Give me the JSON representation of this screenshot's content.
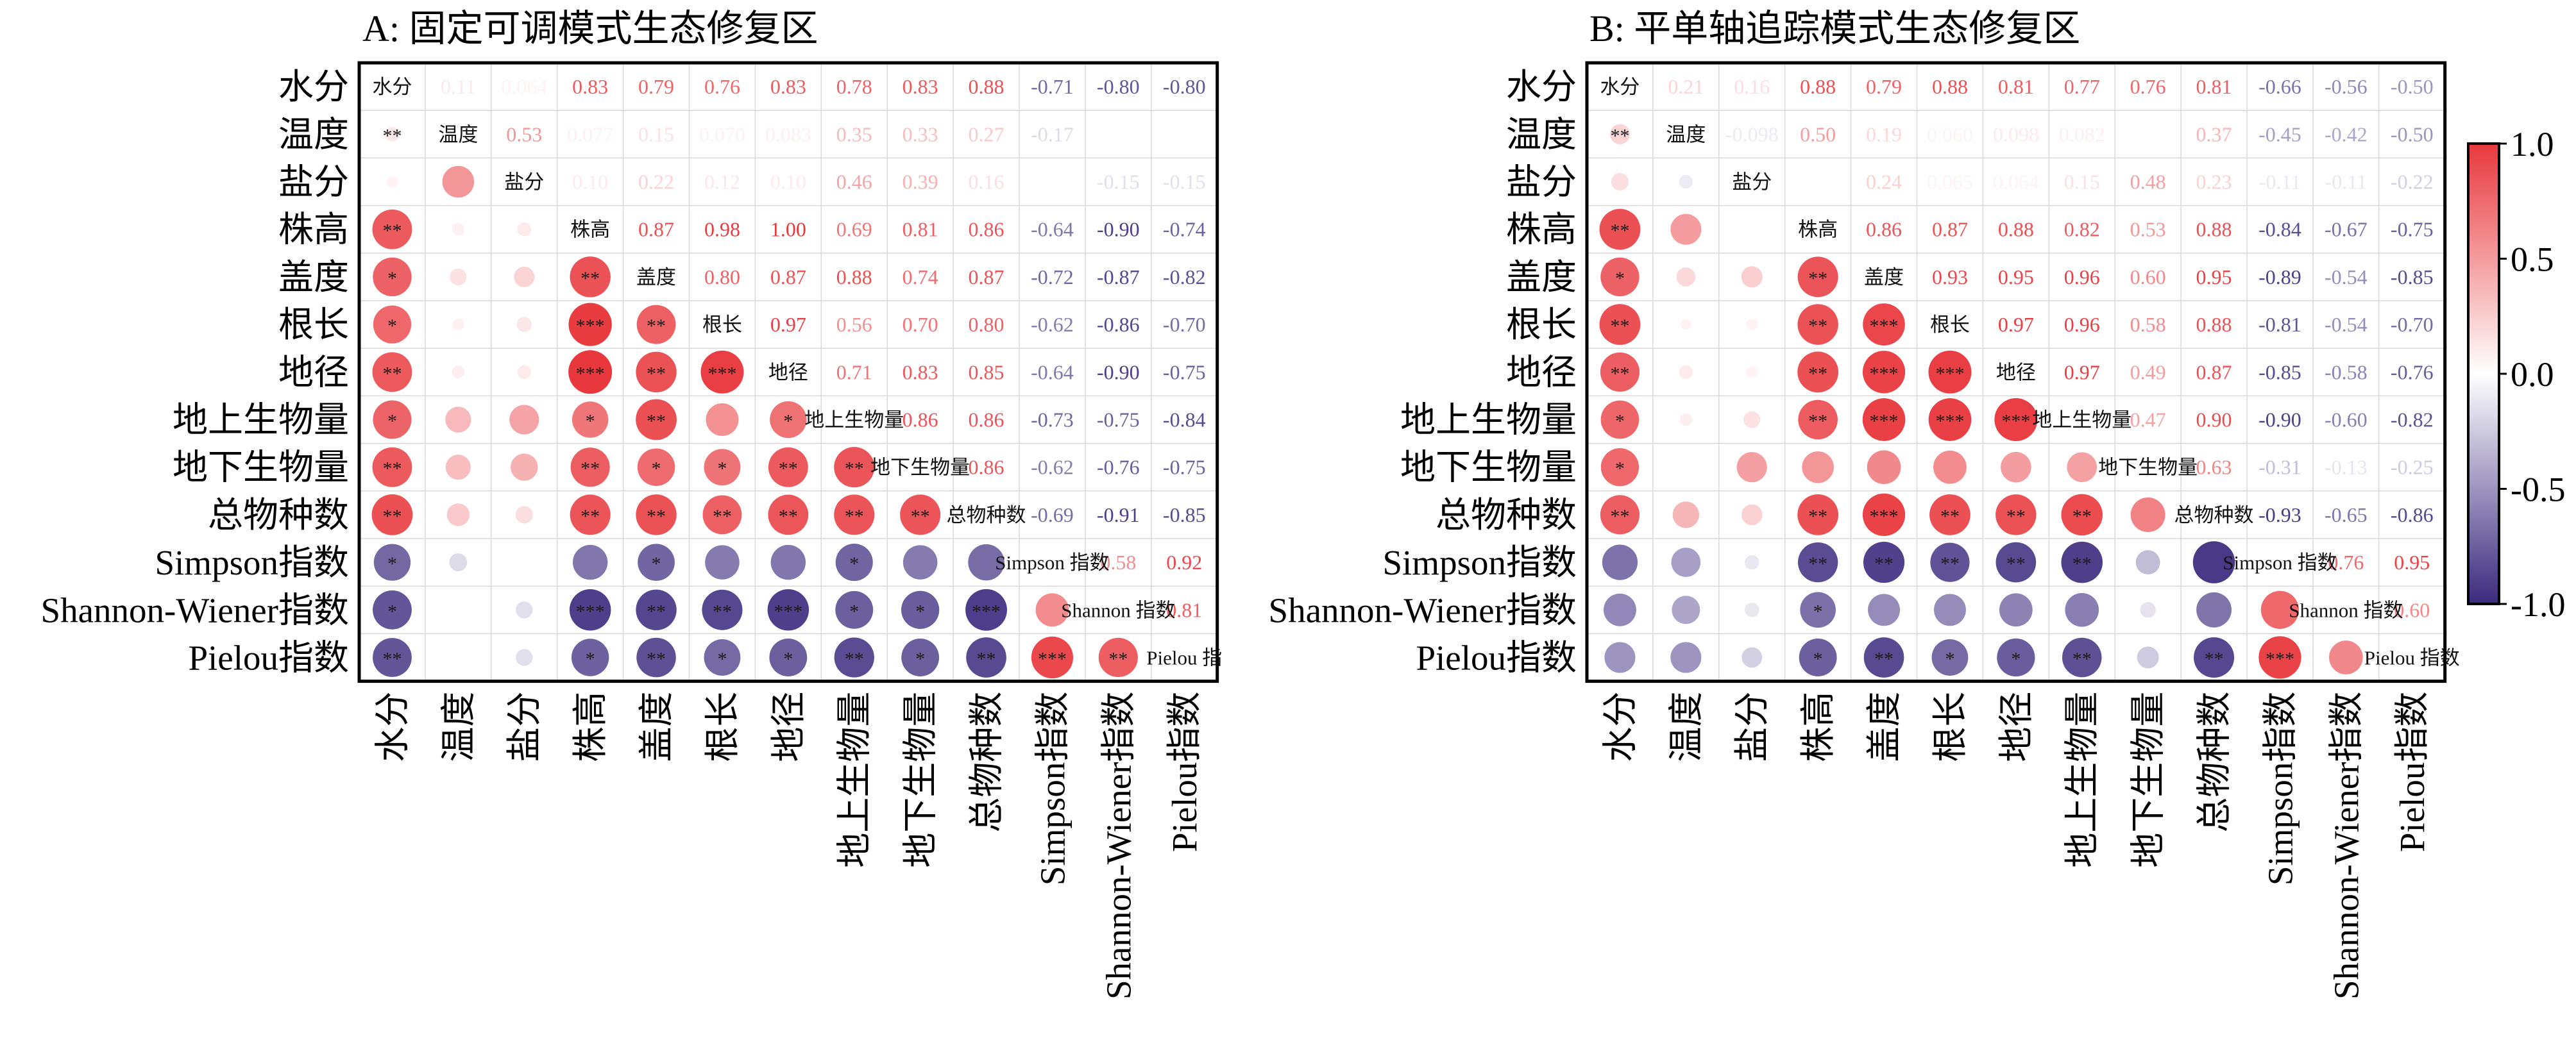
{
  "figure": {
    "colors": {
      "positive": "#e8383d",
      "negative": "#3b2a7e",
      "neutral": "#ffffff",
      "grid": "#d9d9d9"
    }
  },
  "chart_data": [
    {
      "type": "heatmap",
      "title": "A: 固定可调模式生态修复区",
      "variables": [
        "水分",
        "温度",
        "盐分",
        "株高",
        "盖度",
        "根长",
        "地径",
        "地上生物量",
        "地下生物量",
        "总物种数",
        "Simpson指数",
        "Shannon-Wiener指数",
        "Pielou指数"
      ],
      "diagonal_labels": [
        "水分",
        "温度",
        "盐分",
        "株高",
        "盖度",
        "根长",
        "地径",
        "地上生物量",
        "地下生物量",
        "总物种数",
        "Simpson 指数",
        "Shannon 指数",
        "Pielou 指"
      ],
      "upper_values": [
        [
          "0.11",
          "0.064",
          "0.83",
          "0.79",
          "0.76",
          "0.83",
          "0.78",
          "0.83",
          "0.88",
          "-0.71",
          "-0.80",
          "-0.80"
        ],
        [
          "0.53",
          "0.077",
          "0.15",
          "0.070",
          "0.083",
          "0.35",
          "0.33",
          "0.27",
          "-0.17",
          "",
          ""
        ],
        [
          "0.10",
          "0.22",
          "0.12",
          "0.10",
          "0.46",
          "0.39",
          "0.16",
          "",
          "-0.15",
          "-0.15"
        ],
        [
          "0.87",
          "0.98",
          "1.00",
          "0.69",
          "0.81",
          "0.86",
          "-0.64",
          "-0.90",
          "-0.74"
        ],
        [
          "0.80",
          "0.87",
          "0.88",
          "0.74",
          "0.87",
          "-0.72",
          "-0.87",
          "-0.82"
        ],
        [
          "0.97",
          "0.56",
          "0.70",
          "0.80",
          "-0.62",
          "-0.86",
          "-0.70"
        ],
        [
          "0.71",
          "0.83",
          "0.85",
          "-0.64",
          "-0.90",
          "-0.75"
        ],
        [
          "0.86",
          "0.86",
          "-0.73",
          "-0.75",
          "-0.84"
        ],
        [
          "0.86",
          "-0.62",
          "-0.76",
          "-0.75"
        ],
        [
          "-0.69",
          "-0.91",
          "-0.85"
        ],
        [
          "0.58",
          "0.92"
        ],
        [
          "0.81"
        ]
      ],
      "lower_stars": [
        [
          "**"
        ],
        [
          "",
          ""
        ],
        [
          "**",
          "",
          ""
        ],
        [
          "*",
          "",
          "",
          "**"
        ],
        [
          "*",
          "",
          "",
          "***",
          "**"
        ],
        [
          "**",
          "",
          "",
          "***",
          "**",
          "***"
        ],
        [
          "*",
          "",
          "",
          "*",
          "**",
          "",
          "*"
        ],
        [
          "**",
          "",
          "",
          "**",
          "*",
          "*",
          "**",
          "**"
        ],
        [
          "**",
          "",
          "",
          "**",
          "**",
          "**",
          "**",
          "**",
          "**"
        ],
        [
          "*",
          "",
          "",
          "",
          "*",
          "",
          "",
          "*",
          "",
          ""
        ],
        [
          "*",
          "",
          "",
          "***",
          "**",
          "**",
          "***",
          "*",
          "*",
          "***",
          "",
          ""
        ],
        [
          "**",
          "",
          "",
          "*",
          "**",
          "*",
          "*",
          "**",
          "*",
          "**",
          "***",
          "**"
        ]
      ]
    },
    {
      "type": "heatmap",
      "title": "B: 平单轴追踪模式生态修复区",
      "variables": [
        "水分",
        "温度",
        "盐分",
        "株高",
        "盖度",
        "根长",
        "地径",
        "地上生物量",
        "地下生物量",
        "总物种数",
        "Simpson指数",
        "Shannon-Wiener指数",
        "Pielou指数"
      ],
      "diagonal_labels": [
        "水分",
        "温度",
        "盐分",
        "株高",
        "盖度",
        "根长",
        "地径",
        "地上生物量",
        "地下生物量",
        "总物种数",
        "Simpson 指数",
        "Shannon 指数",
        "Pielou 指数"
      ],
      "upper_values": [
        [
          "0.21",
          "0.16",
          "0.88",
          "0.79",
          "0.88",
          "0.81",
          "0.77",
          "0.76",
          "0.81",
          "-0.66",
          "-0.56",
          "-0.50"
        ],
        [
          "-0.098",
          "0.50",
          "0.19",
          "0.060",
          "0.098",
          "0.082",
          "",
          "0.37",
          "-0.45",
          "-0.42",
          "-0.50"
        ],
        [
          "",
          "0.24",
          "0.065",
          "0.064",
          "0.15",
          "0.48",
          "0.23",
          "-0.11",
          "-0.11",
          "-0.22"
        ],
        [
          "0.86",
          "0.87",
          "0.88",
          "0.82",
          "0.53",
          "0.88",
          "-0.84",
          "-0.67",
          "-0.75"
        ],
        [
          "0.93",
          "0.95",
          "0.96",
          "0.60",
          "0.95",
          "-0.89",
          "-0.54",
          "-0.85"
        ],
        [
          "0.97",
          "0.96",
          "0.58",
          "0.88",
          "-0.81",
          "-0.54",
          "-0.70"
        ],
        [
          "0.97",
          "0.49",
          "0.87",
          "-0.85",
          "-0.58",
          "-0.76"
        ],
        [
          "0.47",
          "0.90",
          "-0.90",
          "-0.60",
          "-0.82"
        ],
        [
          "0.63",
          "-0.31",
          "-0.13",
          "-0.25"
        ],
        [
          "-0.93",
          "-0.65",
          "-0.86"
        ],
        [
          "0.76",
          "0.95"
        ],
        [
          "0.60"
        ]
      ],
      "lower_stars": [
        [
          "**"
        ],
        [
          "",
          ""
        ],
        [
          "**",
          "",
          ""
        ],
        [
          "*",
          "",
          "",
          "**"
        ],
        [
          "**",
          "",
          "",
          "**",
          "***"
        ],
        [
          "**",
          "",
          "",
          "**",
          "***",
          "***"
        ],
        [
          "*",
          "",
          "",
          "**",
          "***",
          "***",
          "***"
        ],
        [
          "*",
          "",
          "",
          "",
          "",
          "",
          "",
          ""
        ],
        [
          "**",
          "",
          "",
          "**",
          "***",
          "**",
          "**",
          "**",
          ""
        ],
        [
          "",
          "",
          "",
          "**",
          "**",
          "**",
          "**",
          "**",
          "",
          ""
        ],
        [
          "",
          "",
          "",
          "*",
          "",
          "",
          "",
          "",
          "",
          "",
          ""
        ],
        [
          "",
          "",
          "",
          "*",
          "**",
          "*",
          "*",
          "**",
          "",
          "**",
          "***",
          ""
        ]
      ]
    }
  ],
  "colorbar": {
    "ticks": [
      "1.0",
      "0.5",
      "0.0",
      "-0.5",
      "-1.0"
    ],
    "values": [
      1,
      0.5,
      0,
      -0.5,
      -1
    ]
  }
}
